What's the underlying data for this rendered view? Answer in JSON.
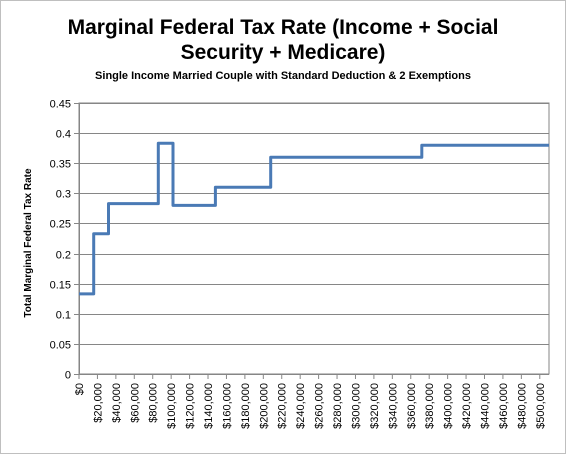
{
  "chart_data": {
    "type": "line",
    "title_line1": "Marginal Federal Tax Rate (Income + Social",
    "title_line2": "Security + Medicare)",
    "subtitle": "Single Income Married Couple with Standard Deduction & 2 Exemptions",
    "xlabel": "",
    "ylabel": "Total Marginal  Federal Tax Rate",
    "xlim": [
      0,
      510000
    ],
    "ylim": [
      0,
      0.45
    ],
    "y_ticks": [
      0,
      0.05,
      0.1,
      0.15,
      0.2,
      0.25,
      0.3,
      0.35,
      0.4,
      0.45
    ],
    "y_tick_labels": [
      "0",
      "0.05",
      "0.1",
      "0.15",
      "0.2",
      "0.25",
      "0.3",
      "0.35",
      "0.4",
      "0.45"
    ],
    "x_ticks": [
      0,
      20000,
      40000,
      60000,
      80000,
      100000,
      120000,
      140000,
      160000,
      180000,
      200000,
      220000,
      240000,
      260000,
      280000,
      300000,
      320000,
      340000,
      360000,
      380000,
      400000,
      420000,
      440000,
      460000,
      480000,
      500000
    ],
    "x_tick_labels": [
      "$0",
      "$20,000",
      "$40,000",
      "$60,000",
      "$80,000",
      "$100,000",
      "$120,000",
      "$140,000",
      "$160,000",
      "$180,000",
      "$200,000",
      "$220,000",
      "$240,000",
      "$260,000",
      "$280,000",
      "$300,000",
      "$320,000",
      "$340,000",
      "$360,000",
      "$380,000",
      "$400,000",
      "$420,000",
      "$440,000",
      "$460,000",
      "$480,000",
      "$500,000"
    ],
    "grid": "horizontal",
    "line_color": "#4a7ab5",
    "series": [
      {
        "x": [
          0,
          16000,
          16000,
          32000,
          32000,
          86000,
          86000,
          102000,
          102000,
          148000,
          148000,
          208000,
          208000,
          372000,
          372000,
          510000
        ],
        "y": [
          0.133,
          0.133,
          0.233,
          0.233,
          0.283,
          0.283,
          0.383,
          0.383,
          0.28,
          0.28,
          0.31,
          0.31,
          0.36,
          0.36,
          0.38,
          0.38
        ]
      }
    ]
  }
}
